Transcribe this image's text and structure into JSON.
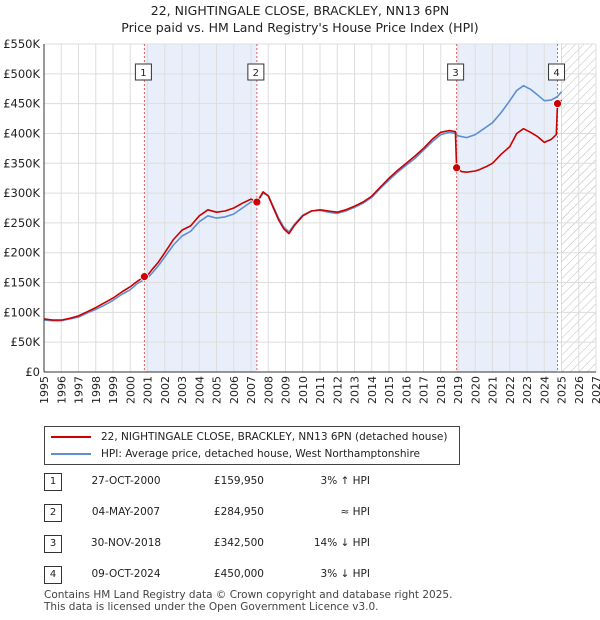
{
  "title_line1": "22, NIGHTINGALE CLOSE, BRACKLEY, NN13 6PN",
  "title_line2": "Price paid vs. HM Land Registry's House Price Index (HPI)",
  "colors": {
    "property": "#cc0000",
    "hpi": "#5b8fd6",
    "highlight": "#e9effa",
    "grid": "#dddddd",
    "marker_line": "#e06060"
  },
  "chart_data": {
    "type": "line",
    "title": "22, NIGHTINGALE CLOSE, BRACKLEY, NN13 6PN",
    "subtitle": "Price paid vs. HM Land Registry's House Price Index (HPI)",
    "xlabel": "",
    "ylabel": "",
    "xlim": [
      1995,
      2027
    ],
    "ylim": [
      0,
      550000
    ],
    "x_ticks": [
      1995,
      1996,
      1997,
      1998,
      1999,
      2000,
      2001,
      2002,
      2003,
      2004,
      2005,
      2006,
      2007,
      2008,
      2009,
      2010,
      2011,
      2012,
      2013,
      2014,
      2015,
      2016,
      2017,
      2018,
      2019,
      2020,
      2021,
      2022,
      2023,
      2024,
      2025,
      2026,
      2027
    ],
    "y_ticks": [
      0,
      50000,
      100000,
      150000,
      200000,
      250000,
      300000,
      350000,
      400000,
      450000,
      500000,
      550000
    ],
    "y_tick_labels": [
      "£0",
      "£50K",
      "£100K",
      "£150K",
      "£200K",
      "£250K",
      "£300K",
      "£350K",
      "£400K",
      "£450K",
      "£500K",
      "£550K"
    ],
    "highlight_periods": [
      [
        2000.82,
        2007.34
      ],
      [
        2018.92,
        2024.77
      ]
    ],
    "future_hatch_from": 2025.0,
    "series": [
      {
        "name": "22, NIGHTINGALE CLOSE, BRACKLEY, NN13 6PN (detached house)",
        "x": [
          1995.0,
          1995.5,
          1996.0,
          1996.5,
          1997.0,
          1997.5,
          1998.0,
          1998.5,
          1999.0,
          1999.5,
          2000.0,
          2000.4,
          2000.82,
          2001.0,
          2001.3,
          2001.6,
          2002.0,
          2002.5,
          2003.0,
          2003.5,
          2004.0,
          2004.5,
          2005.0,
          2005.5,
          2006.0,
          2006.5,
          2007.0,
          2007.34,
          2007.7,
          2008.0,
          2008.3,
          2008.6,
          2008.9,
          2009.2,
          2009.5,
          2010.0,
          2010.5,
          2011.0,
          2011.5,
          2012.0,
          2012.5,
          2013.0,
          2013.5,
          2014.0,
          2014.5,
          2015.0,
          2015.5,
          2016.0,
          2016.5,
          2017.0,
          2017.5,
          2018.0,
          2018.5,
          2018.85,
          2018.92,
          2019.2,
          2019.5,
          2020.0,
          2020.3,
          2020.6,
          2021.0,
          2021.5,
          2022.0,
          2022.4,
          2022.8,
          2023.2,
          2023.6,
          2024.0,
          2024.4,
          2024.7,
          2024.77,
          2025.0
        ],
        "y": [
          89000,
          87000,
          87000,
          90000,
          94000,
          101000,
          108000,
          116000,
          124000,
          134000,
          143000,
          152000,
          159950,
          162000,
          173000,
          183000,
          200000,
          222000,
          238000,
          245000,
          262000,
          272000,
          268000,
          270000,
          275000,
          283000,
          290000,
          284950,
          302000,
          295000,
          275000,
          255000,
          240000,
          232000,
          245000,
          262000,
          270000,
          272000,
          270000,
          268000,
          272000,
          278000,
          285000,
          295000,
          310000,
          325000,
          338000,
          350000,
          362000,
          375000,
          390000,
          402000,
          405000,
          403000,
          342500,
          336000,
          335000,
          337000,
          340000,
          344000,
          350000,
          365000,
          378000,
          400000,
          408000,
          402000,
          395000,
          385000,
          390000,
          398000,
          450000,
          456000
        ]
      },
      {
        "name": "HPI: Average price, detached house, West Northamptonshire",
        "x": [
          1995.0,
          1995.5,
          1996.0,
          1996.5,
          1997.0,
          1997.5,
          1998.0,
          1998.5,
          1999.0,
          1999.5,
          2000.0,
          2000.4,
          2000.82,
          2001.0,
          2001.3,
          2001.6,
          2002.0,
          2002.5,
          2003.0,
          2003.5,
          2004.0,
          2004.5,
          2005.0,
          2005.5,
          2006.0,
          2006.5,
          2007.0,
          2007.34,
          2007.7,
          2008.0,
          2008.3,
          2008.6,
          2008.9,
          2009.2,
          2009.5,
          2010.0,
          2010.5,
          2011.0,
          2011.5,
          2012.0,
          2012.5,
          2013.0,
          2013.5,
          2014.0,
          2014.5,
          2015.0,
          2015.5,
          2016.0,
          2016.5,
          2017.0,
          2017.5,
          2018.0,
          2018.5,
          2018.85,
          2019.0,
          2019.5,
          2020.0,
          2020.5,
          2021.0,
          2021.5,
          2022.0,
          2022.4,
          2022.8,
          2023.2,
          2023.6,
          2024.0,
          2024.4,
          2024.77,
          2025.0
        ],
        "y": [
          87000,
          86000,
          86000,
          89000,
          92000,
          99000,
          105000,
          112000,
          120000,
          130000,
          138000,
          148000,
          155000,
          158000,
          167000,
          177000,
          193000,
          213000,
          228000,
          236000,
          252000,
          262000,
          258000,
          260000,
          265000,
          275000,
          285000,
          284000,
          300000,
          296000,
          277000,
          258000,
          243000,
          235000,
          247000,
          263000,
          270000,
          271000,
          268000,
          266000,
          270000,
          276000,
          283000,
          293000,
          308000,
          322000,
          335000,
          347000,
          358000,
          372000,
          386000,
          398000,
          402000,
          400000,
          396000,
          393000,
          398000,
          408000,
          418000,
          435000,
          455000,
          472000,
          480000,
          474000,
          465000,
          455000,
          456000,
          462000,
          470000
        ]
      }
    ],
    "sales": [
      {
        "label": "1",
        "x": 2000.82,
        "y": 159950
      },
      {
        "label": "2",
        "x": 2007.34,
        "y": 284950
      },
      {
        "label": "3",
        "x": 2018.92,
        "y": 342500
      },
      {
        "label": "4",
        "x": 2024.77,
        "y": 450000
      }
    ]
  },
  "legend": {
    "property_label": "22, NIGHTINGALE CLOSE, BRACKLEY, NN13 6PN (detached house)",
    "hpi_label": "HPI: Average price, detached house, West Northamptonshire"
  },
  "transactions": [
    {
      "num": "1",
      "date": "27-OCT-2000",
      "price": "£159,950",
      "hpi": "3% ↑ HPI"
    },
    {
      "num": "2",
      "date": "04-MAY-2007",
      "price": "£284,950",
      "hpi": "≈ HPI"
    },
    {
      "num": "3",
      "date": "30-NOV-2018",
      "price": "£342,500",
      "hpi": "14% ↓ HPI"
    },
    {
      "num": "4",
      "date": "09-OCT-2024",
      "price": "£450,000",
      "hpi": "3% ↓ HPI"
    }
  ],
  "footer_line1": "Contains HM Land Registry data © Crown copyright and database right 2025.",
  "footer_line2": "This data is licensed under the Open Government Licence v3.0."
}
